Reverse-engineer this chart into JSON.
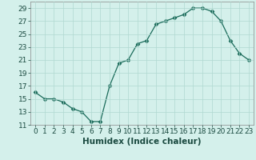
{
  "x": [
    0,
    1,
    2,
    3,
    4,
    5,
    6,
    7,
    8,
    9,
    10,
    11,
    12,
    13,
    14,
    15,
    16,
    17,
    18,
    19,
    20,
    21,
    22,
    23
  ],
  "y": [
    16,
    15,
    15,
    14.5,
    13.5,
    13,
    11.5,
    11.5,
    17,
    20.5,
    21,
    23.5,
    24,
    26.5,
    27,
    27.5,
    28,
    29,
    29,
    28.5,
    27,
    24,
    22,
    21
  ],
  "xlabel": "Humidex (Indice chaleur)",
  "ylim": [
    11,
    30
  ],
  "xlim": [
    -0.5,
    23.5
  ],
  "yticks": [
    11,
    13,
    15,
    17,
    19,
    21,
    23,
    25,
    27,
    29
  ],
  "xticks": [
    0,
    1,
    2,
    3,
    4,
    5,
    6,
    7,
    8,
    9,
    10,
    11,
    12,
    13,
    14,
    15,
    16,
    17,
    18,
    19,
    20,
    21,
    22,
    23
  ],
  "line_color": "#1a6b5a",
  "marker": "D",
  "marker_size": 2.5,
  "bg_color": "#d4f0eb",
  "grid_color": "#b0d8d0",
  "axis_fontsize": 7.5,
  "tick_fontsize": 6.5,
  "xlabel_color": "#1a4a40"
}
